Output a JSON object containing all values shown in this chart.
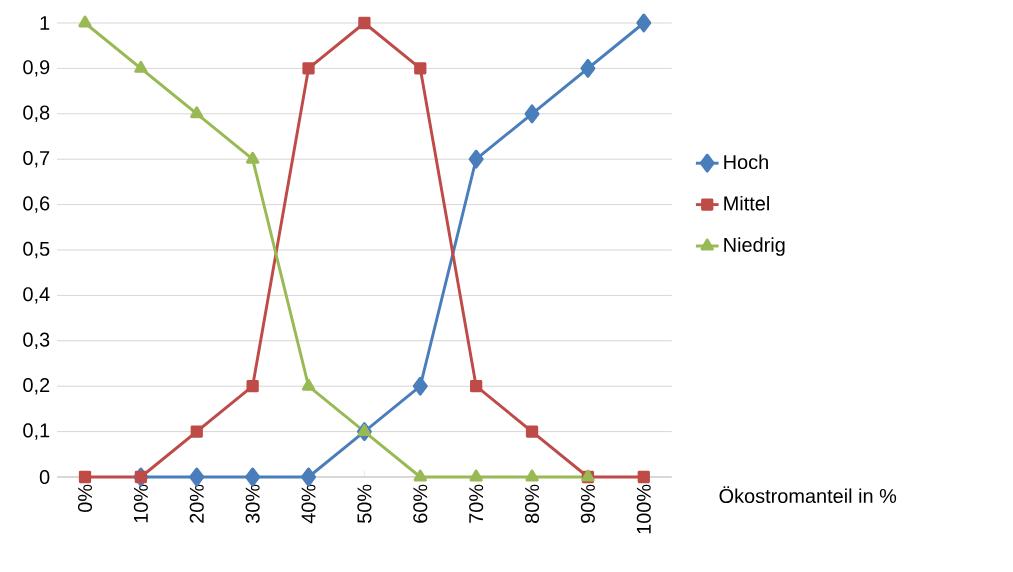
{
  "chart_data": {
    "type": "line",
    "xlabel": "Ökostromanteil in %",
    "categories": [
      "0%",
      "10%",
      "20%",
      "30%",
      "40%",
      "50%",
      "60%",
      "70%",
      "80%",
      "90%",
      "100%"
    ],
    "series": [
      {
        "name": "Hoch",
        "color": "#4a7ebb",
        "marker": "diamond",
        "values": [
          null,
          0,
          0,
          0,
          0,
          0.1,
          0.2,
          0.7,
          0.8,
          0.9,
          1
        ]
      },
      {
        "name": "Mittel",
        "color": "#be4b48",
        "marker": "square",
        "values": [
          0,
          0,
          0.1,
          0.2,
          0.9,
          1,
          0.9,
          0.2,
          0.1,
          0,
          0
        ]
      },
      {
        "name": "Niedrig",
        "color": "#98b954",
        "marker": "triangle",
        "values": [
          1,
          0.9,
          0.8,
          0.7,
          0.2,
          0.1,
          0,
          0,
          0,
          0,
          null
        ]
      }
    ],
    "ylim": [
      0,
      1
    ],
    "yticks": [
      0,
      {
        "value": 0.1,
        "label": "0,1"
      },
      {
        "value": 0.2,
        "label": "0,2"
      },
      {
        "value": 0.3,
        "label": "0,3"
      },
      {
        "value": 0.4,
        "label": "0,4"
      },
      {
        "value": 0.5,
        "label": "0,5"
      },
      {
        "value": 0.6,
        "label": "0,6"
      },
      {
        "value": 0.7,
        "label": "0,7"
      },
      {
        "value": 0.8,
        "label": "0,8"
      },
      {
        "value": 0.9,
        "label": "0,9"
      },
      1
    ],
    "grid": "y",
    "legend": "right",
    "line_style": "solid"
  }
}
